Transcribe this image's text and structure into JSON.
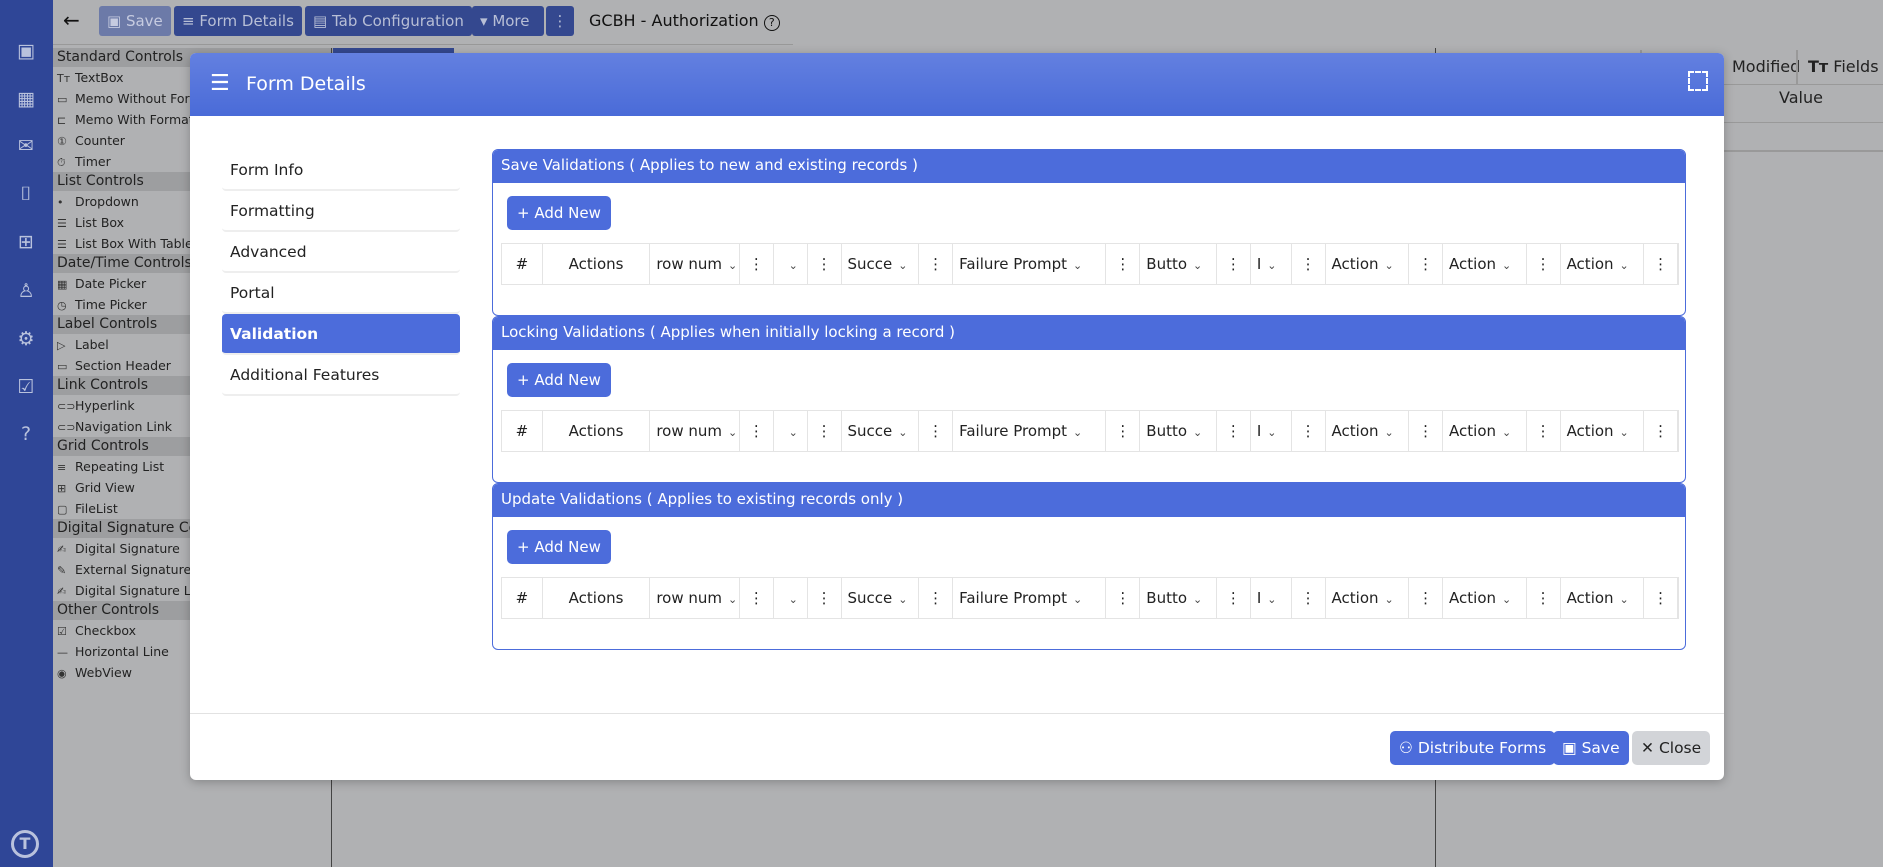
{
  "iconbar": {
    "icons": [
      "contact-card-icon",
      "calendar-icon",
      "mail-icon",
      "document-scan-icon",
      "medical-kit-icon",
      "user-icon",
      "gear-icon",
      "checklist-icon",
      "help-icon"
    ],
    "logo": "T"
  },
  "toolbar": {
    "back": "←",
    "save": "Save",
    "form_details": "Form Details",
    "tab_configuration": "Tab Configuration",
    "more": "More",
    "kebab": "⋮",
    "app_title": "GCBH - Authorization",
    "help": "?"
  },
  "left_panel": {
    "groups": [
      {
        "title": "Standard Controls",
        "items": [
          [
            "Tт",
            "TextBox"
          ],
          [
            "▭",
            "Memo Without Formatting"
          ],
          [
            "⊏",
            "Memo With Formatting"
          ],
          [
            "①",
            "Counter"
          ],
          [
            "⏱",
            "Timer"
          ]
        ]
      },
      {
        "title": "List Controls",
        "items": [
          [
            "•",
            "Dropdown"
          ],
          [
            "☰",
            "List Box"
          ],
          [
            "☰",
            "List Box With Table"
          ]
        ]
      },
      {
        "title": "Date/Time Controls",
        "items": [
          [
            "▦",
            "Date Picker"
          ],
          [
            "◷",
            "Time Picker"
          ]
        ]
      },
      {
        "title": "Label Controls",
        "items": [
          [
            "▷",
            "Label"
          ],
          [
            "▭",
            "Section Header"
          ]
        ]
      },
      {
        "title": "Link Controls",
        "items": [
          [
            "⊂⊃",
            "Hyperlink"
          ],
          [
            "⊂⊃",
            "Navigation Link"
          ]
        ]
      },
      {
        "title": "Grid Controls",
        "items": [
          [
            "≡",
            "Repeating List"
          ],
          [
            "⊞",
            "Grid View"
          ],
          [
            "▢",
            "FileList"
          ]
        ]
      },
      {
        "title": "Digital Signature Controls",
        "items": [
          [
            "✍",
            "Digital Signature"
          ],
          [
            "✎",
            "External Signature"
          ],
          [
            "✍",
            "Digital Signature List"
          ]
        ]
      },
      {
        "title": "Other Controls",
        "items": [
          [
            "☑",
            "Checkbox"
          ],
          [
            "—",
            "Horizontal Line"
          ],
          [
            "◉",
            "WebView"
          ]
        ]
      }
    ]
  },
  "right_panel": {
    "tab_modified": "Modified",
    "tab_fields": "Fields",
    "fields_icon": "Tт",
    "column_value": "Value"
  },
  "modal": {
    "title": "Form Details",
    "nav": [
      {
        "label": "Form Info"
      },
      {
        "label": "Formatting"
      },
      {
        "label": "Advanced"
      },
      {
        "label": "Portal"
      },
      {
        "label": "Validation",
        "active": true
      },
      {
        "label": "Additional Features"
      }
    ],
    "add_new": "Add New",
    "sections": [
      {
        "title": "Save Validations ( Applies to new and existing records )"
      },
      {
        "title": "Locking Validations ( Applies when initially locking a record )"
      },
      {
        "title": "Update Validations ( Applies to existing records only )"
      }
    ],
    "columns": [
      "#",
      "Actions",
      "row num",
      "⋮",
      "",
      "⋮",
      "Succe",
      "⋮",
      "Failure Prompt",
      "⋮",
      "Butto",
      "⋮",
      "I",
      "⋮",
      "Action",
      "⋮",
      "Action",
      "⋮",
      "Action",
      "⋮"
    ],
    "footer": {
      "distribute": "Distribute Forms",
      "save": "Save",
      "close": "Close"
    }
  }
}
